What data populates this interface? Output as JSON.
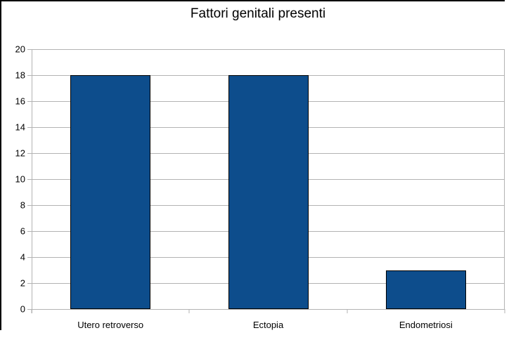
{
  "chart_data": {
    "type": "bar",
    "title": "Fattori genitali presenti",
    "categories": [
      "Utero retroverso",
      "Ectopia",
      "Endometriosi"
    ],
    "values": [
      18,
      18,
      3
    ],
    "xlabel": "",
    "ylabel": "",
    "ylim": [
      0,
      20
    ],
    "ytick_step": 2,
    "grid": true,
    "legend_position": "none",
    "colors": {
      "bar_fill": "#0d4d8c",
      "bar_border": "#000000",
      "axis_and_grid": "#b3b3b3",
      "text": "#000000",
      "background": "#ffffff",
      "outer_frame": "#000000"
    }
  }
}
